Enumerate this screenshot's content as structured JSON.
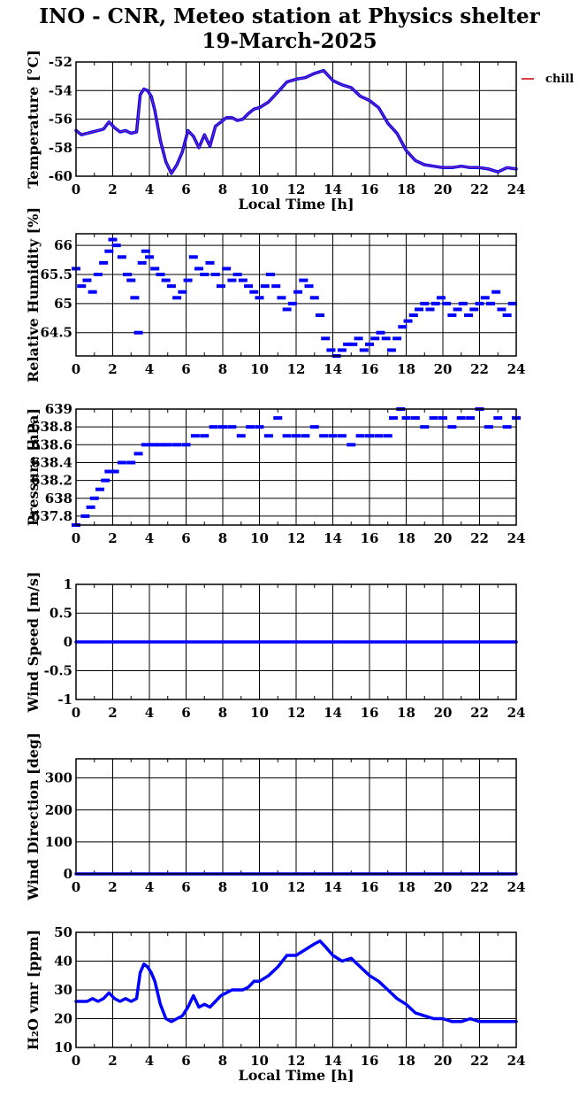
{
  "title": {
    "line1": "INO - CNR, Meteo station at Physics shelter",
    "line2": "19-March-2025"
  },
  "colors": {
    "series": "#0000ff",
    "legend_line": "#cc0000",
    "axes": "#000000"
  },
  "chart_data": [
    {
      "id": "temperature",
      "type": "line",
      "ylabel": "Temperature [°C]",
      "xlabel": "Local Time [h]",
      "xlim": [
        0,
        24
      ],
      "ylim": [
        -60,
        -52
      ],
      "xticks": [
        0,
        2,
        4,
        6,
        8,
        10,
        12,
        14,
        16,
        18,
        20,
        22,
        24
      ],
      "yticks": [
        -60,
        -58,
        -56,
        -54,
        -52
      ],
      "ytick_labels": [
        "-60",
        "-58",
        "-56",
        "-54",
        "-52"
      ],
      "legend": {
        "label": "chill",
        "position": "outside-top-right"
      },
      "series": [
        {
          "name": "chill",
          "x": [
            0,
            0.3,
            0.6,
            0.9,
            1.2,
            1.5,
            1.8,
            2.1,
            2.4,
            2.7,
            3.0,
            3.3,
            3.5,
            3.7,
            3.9,
            4.1,
            4.3,
            4.6,
            4.9,
            5.2,
            5.5,
            5.8,
            6.1,
            6.4,
            6.7,
            7.0,
            7.3,
            7.6,
            7.9,
            8.2,
            8.5,
            8.8,
            9.1,
            9.4,
            9.7,
            10.0,
            10.5,
            11.0,
            11.5,
            12.0,
            12.5,
            13.0,
            13.5,
            14.0,
            14.5,
            15.0,
            15.5,
            16.0,
            16.5,
            17.0,
            17.5,
            18.0,
            18.5,
            19.0,
            19.5,
            20.0,
            20.5,
            21.0,
            21.5,
            22.0,
            22.5,
            23.0,
            23.5,
            24.0
          ],
          "y": [
            -56.8,
            -57.1,
            -57.0,
            -56.9,
            -56.8,
            -56.7,
            -56.2,
            -56.6,
            -56.9,
            -56.8,
            -57.0,
            -56.9,
            -54.3,
            -53.9,
            -54.0,
            -54.4,
            -55.4,
            -57.5,
            -59.0,
            -59.8,
            -59.2,
            -58.3,
            -56.8,
            -57.2,
            -58.0,
            -57.1,
            -57.9,
            -56.5,
            -56.2,
            -55.9,
            -55.9,
            -56.1,
            -56.0,
            -55.6,
            -55.3,
            -55.2,
            -54.8,
            -54.1,
            -53.4,
            -53.2,
            -53.1,
            -52.8,
            -52.6,
            -53.3,
            -53.6,
            -53.8,
            -54.4,
            -54.7,
            -55.2,
            -56.3,
            -57.0,
            -58.2,
            -58.9,
            -59.2,
            -59.3,
            -59.4,
            -59.4,
            -59.3,
            -59.4,
            -59.4,
            -59.5,
            -59.7,
            -59.4,
            -59.5
          ]
        }
      ]
    },
    {
      "id": "humidity",
      "type": "scatter",
      "ylabel": "Relative Humidity [%]",
      "xlim": [
        0,
        24
      ],
      "ylim": [
        64.1,
        66.2
      ],
      "xticks": [
        0,
        2,
        4,
        6,
        8,
        10,
        12,
        14,
        16,
        18,
        20,
        22,
        24
      ],
      "yticks": [
        64.5,
        65,
        65.5,
        66
      ],
      "ytick_labels": [
        "64.5",
        "65",
        "65.5",
        "66"
      ],
      "series": [
        {
          "name": "",
          "x": [
            0,
            0.3,
            0.6,
            0.9,
            1.2,
            1.5,
            1.8,
            2.0,
            2.2,
            2.5,
            2.8,
            3.0,
            3.2,
            3.4,
            3.6,
            3.8,
            4.0,
            4.3,
            4.6,
            4.9,
            5.2,
            5.5,
            5.8,
            6.1,
            6.4,
            6.7,
            7.0,
            7.3,
            7.6,
            7.9,
            8.2,
            8.5,
            8.8,
            9.1,
            9.4,
            9.7,
            10.0,
            10.3,
            10.6,
            10.9,
            11.2,
            11.5,
            11.8,
            12.1,
            12.4,
            12.7,
            13.0,
            13.3,
            13.6,
            13.9,
            14.2,
            14.5,
            14.8,
            15.1,
            15.4,
            15.7,
            16.0,
            16.3,
            16.6,
            16.9,
            17.2,
            17.5,
            17.8,
            18.1,
            18.4,
            18.7,
            19.0,
            19.3,
            19.6,
            19.9,
            20.2,
            20.5,
            20.8,
            21.1,
            21.4,
            21.7,
            22.0,
            22.3,
            22.6,
            22.9,
            23.2,
            23.5,
            23.8
          ],
          "y": [
            65.6,
            65.3,
            65.4,
            65.2,
            65.5,
            65.7,
            65.9,
            66.1,
            66.0,
            65.8,
            65.5,
            65.4,
            65.1,
            64.5,
            65.7,
            65.9,
            65.8,
            65.6,
            65.5,
            65.4,
            65.3,
            65.1,
            65.2,
            65.4,
            65.8,
            65.6,
            65.5,
            65.7,
            65.5,
            65.3,
            65.6,
            65.4,
            65.5,
            65.4,
            65.3,
            65.2,
            65.1,
            65.3,
            65.5,
            65.3,
            65.1,
            64.9,
            65.0,
            65.2,
            65.4,
            65.3,
            65.1,
            64.8,
            64.4,
            64.2,
            64.1,
            64.2,
            64.3,
            64.3,
            64.4,
            64.2,
            64.3,
            64.4,
            64.5,
            64.4,
            64.2,
            64.4,
            64.6,
            64.7,
            64.8,
            64.9,
            65.0,
            64.9,
            65.0,
            65.1,
            65.0,
            64.8,
            64.9,
            65.0,
            64.8,
            64.9,
            65.0,
            65.1,
            65.0,
            65.2,
            64.9,
            64.8,
            65.0
          ]
        }
      ]
    },
    {
      "id": "pressure",
      "type": "scatter",
      "ylabel": "Pressure [hPa]",
      "xlim": [
        0,
        24
      ],
      "ylim": [
        637.7,
        639
      ],
      "xticks": [
        0,
        2,
        4,
        6,
        8,
        10,
        12,
        14,
        16,
        18,
        20,
        22,
        24
      ],
      "yticks": [
        637.8,
        638,
        638.2,
        638.4,
        638.6,
        638.8,
        639
      ],
      "ytick_labels": [
        "637.8",
        "638",
        "638.2",
        "638.4",
        "638.6",
        "638.8",
        "639"
      ],
      "series": [
        {
          "name": "",
          "x": [
            0,
            0.5,
            0.8,
            1.0,
            1.3,
            1.6,
            1.8,
            2.1,
            2.5,
            3.0,
            3.4,
            3.8,
            4.2,
            4.6,
            5.0,
            5.5,
            6.0,
            6.5,
            7.0,
            7.5,
            8.0,
            8.5,
            9.0,
            9.5,
            10.0,
            10.5,
            11.0,
            11.5,
            12.0,
            12.5,
            13.0,
            13.5,
            14.0,
            14.5,
            15.0,
            15.5,
            16.0,
            16.5,
            17.0,
            17.3,
            17.7,
            18.0,
            18.5,
            19.0,
            19.5,
            20.0,
            20.5,
            21.0,
            21.5,
            22.0,
            22.5,
            23.0,
            23.5,
            24.0
          ],
          "y": [
            637.7,
            637.8,
            637.9,
            638.0,
            638.1,
            638.2,
            638.3,
            638.3,
            638.4,
            638.4,
            638.5,
            638.6,
            638.6,
            638.6,
            638.6,
            638.6,
            638.6,
            638.7,
            638.7,
            638.8,
            638.8,
            638.8,
            638.7,
            638.8,
            638.8,
            638.7,
            638.9,
            638.7,
            638.7,
            638.7,
            638.8,
            638.7,
            638.7,
            638.7,
            638.6,
            638.7,
            638.7,
            638.7,
            638.7,
            638.9,
            639.0,
            638.9,
            638.9,
            638.8,
            638.9,
            638.9,
            638.8,
            638.9,
            638.9,
            639.0,
            638.8,
            638.9,
            638.8,
            638.9
          ]
        }
      ]
    },
    {
      "id": "wind_speed",
      "type": "line",
      "ylabel": "Wind Speed [m/s]",
      "xlim": [
        0,
        24
      ],
      "ylim": [
        -1,
        1
      ],
      "xticks": [
        0,
        2,
        4,
        6,
        8,
        10,
        12,
        14,
        16,
        18,
        20,
        22,
        24
      ],
      "yticks": [
        -1,
        -0.5,
        0,
        0.5,
        1
      ],
      "ytick_labels": [
        "-1",
        "-0.5",
        "0",
        "0.5",
        "1"
      ],
      "series": [
        {
          "name": "",
          "x": [
            0,
            24
          ],
          "y": [
            0,
            0
          ]
        }
      ]
    },
    {
      "id": "wind_direction",
      "type": "line",
      "ylabel": "Wind Direction [deg]",
      "xlim": [
        0,
        24
      ],
      "ylim": [
        0,
        360
      ],
      "xticks": [
        0,
        2,
        4,
        6,
        8,
        10,
        12,
        14,
        16,
        18,
        20,
        22,
        24
      ],
      "yticks": [
        0,
        100,
        200,
        300
      ],
      "ytick_labels": [
        "0",
        "100",
        "200",
        "300"
      ],
      "series": [
        {
          "name": "",
          "x": [
            0,
            24
          ],
          "y": [
            0,
            0
          ]
        }
      ]
    },
    {
      "id": "h2o",
      "type": "line",
      "ylabel": "H₂O vmr [ppm]",
      "xlabel": "Local Time [h]",
      "xlim": [
        0,
        24
      ],
      "ylim": [
        10,
        50
      ],
      "xticks": [
        0,
        2,
        4,
        6,
        8,
        10,
        12,
        14,
        16,
        18,
        20,
        22,
        24
      ],
      "yticks": [
        10,
        20,
        30,
        40,
        50
      ],
      "ytick_labels": [
        "10",
        "20",
        "30",
        "40",
        "50"
      ],
      "series": [
        {
          "name": "",
          "x": [
            0,
            0.3,
            0.6,
            0.9,
            1.2,
            1.5,
            1.8,
            2.1,
            2.4,
            2.7,
            3.0,
            3.3,
            3.5,
            3.7,
            3.9,
            4.1,
            4.3,
            4.6,
            4.9,
            5.2,
            5.5,
            5.8,
            6.1,
            6.4,
            6.7,
            7.0,
            7.3,
            7.6,
            7.9,
            8.2,
            8.5,
            8.8,
            9.1,
            9.4,
            9.7,
            10.0,
            10.5,
            11.0,
            11.5,
            12.0,
            12.5,
            13.0,
            13.3,
            13.6,
            14.0,
            14.5,
            15.0,
            15.5,
            16.0,
            16.5,
            17.0,
            17.5,
            18.0,
            18.5,
            19.0,
            19.5,
            20.0,
            20.5,
            21.0,
            21.5,
            22.0,
            22.5,
            23.0,
            23.5,
            24.0
          ],
          "y": [
            26,
            26,
            26,
            27,
            26,
            27,
            29,
            27,
            26,
            27,
            26,
            27,
            36,
            39,
            38,
            36,
            33,
            25,
            20,
            19,
            20,
            21,
            24,
            28,
            24,
            25,
            24,
            26,
            28,
            29,
            30,
            30,
            30,
            31,
            33,
            33,
            35,
            38,
            42,
            42,
            44,
            46,
            47,
            45,
            42,
            40,
            41,
            38,
            35,
            33,
            30,
            27,
            25,
            22,
            21,
            20,
            20,
            19,
            19,
            20,
            19,
            19,
            19,
            19,
            19
          ]
        }
      ]
    }
  ]
}
